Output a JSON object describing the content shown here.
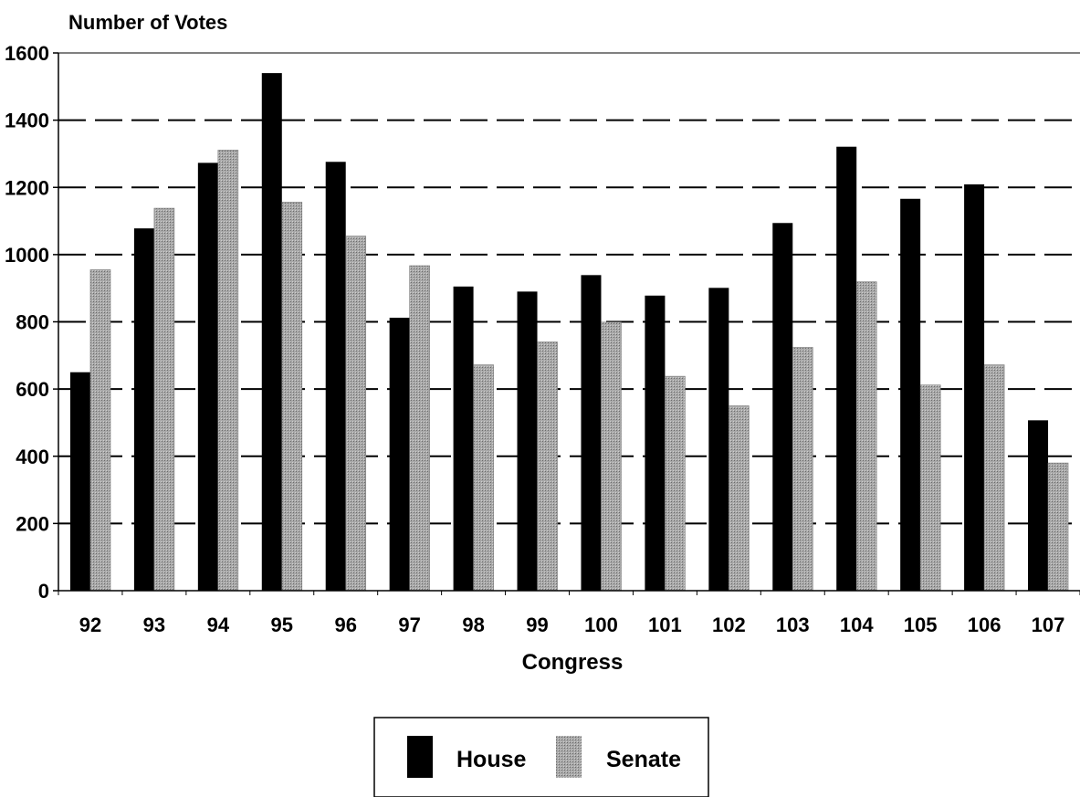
{
  "chart_data": {
    "type": "bar",
    "ylabel": "Number of Votes",
    "xlabel": "Congress",
    "categories": [
      "92",
      "93",
      "94",
      "95",
      "96",
      "97",
      "98",
      "99",
      "100",
      "101",
      "102",
      "103",
      "104",
      "105",
      "106",
      "107"
    ],
    "series": [
      {
        "name": "House",
        "values": [
          650,
          1078,
          1273,
          1540,
          1276,
          812,
          905,
          890,
          939,
          878,
          901,
          1094,
          1321,
          1166,
          1209,
          507
        ]
      },
      {
        "name": "Senate",
        "values": [
          955,
          1138,
          1311,
          1156,
          1055,
          967,
          672,
          740,
          799,
          638,
          550,
          724,
          919,
          612,
          672,
          380
        ]
      }
    ],
    "yticks": [
      0,
      200,
      400,
      600,
      800,
      1000,
      1200,
      1400,
      1600
    ],
    "ylim": [
      0,
      1600
    ],
    "grid": "dashed-horizontal",
    "legend": "bottom-center",
    "colors": {
      "house": "#000000",
      "senate": "#9a9a9a"
    }
  }
}
